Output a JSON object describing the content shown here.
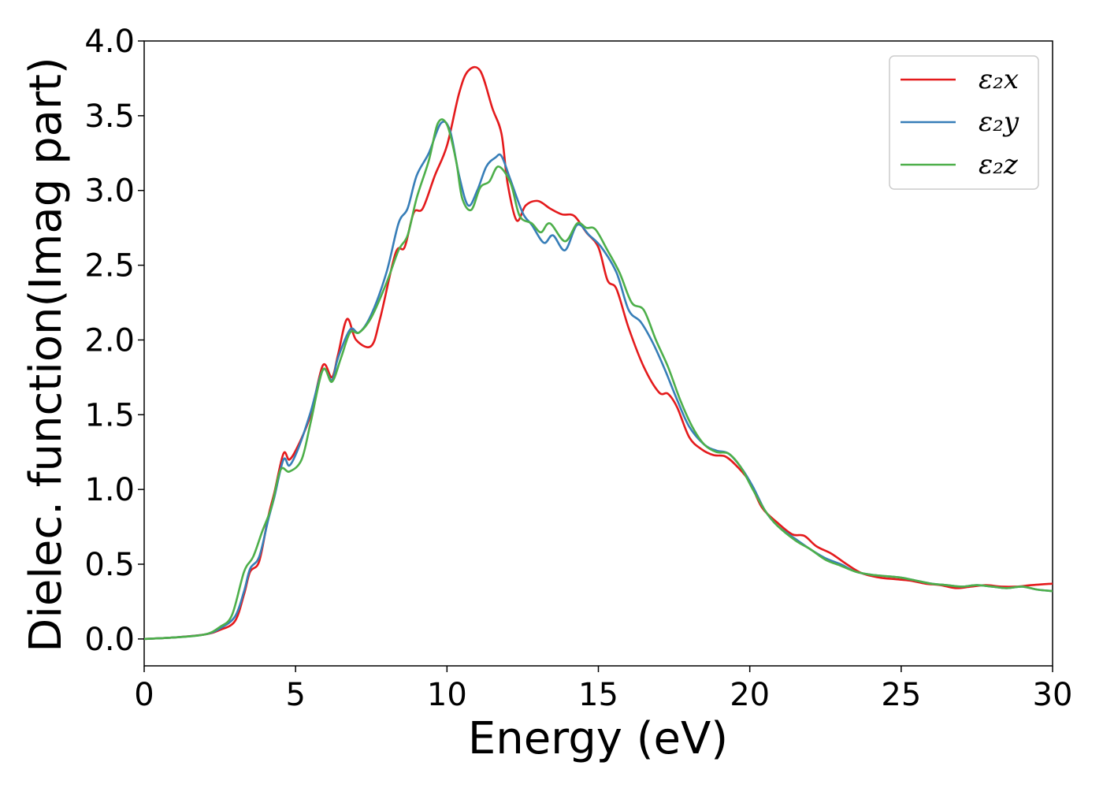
{
  "chart_data": {
    "type": "line",
    "title": "",
    "xlabel": "Energy (eV)",
    "ylabel": "Dielec. function(Imag part)",
    "xlim": [
      0,
      30
    ],
    "ylim": [
      -0.18,
      4.0
    ],
    "xticks": [
      0,
      5,
      10,
      15,
      20,
      25,
      30
    ],
    "yticks": [
      0.0,
      0.5,
      1.0,
      1.5,
      2.0,
      2.5,
      3.0,
      3.5,
      4.0
    ],
    "xtick_labels": [
      "0",
      "5",
      "10",
      "15",
      "20",
      "25",
      "30"
    ],
    "ytick_labels": [
      "0.0",
      "0.5",
      "1.0",
      "1.5",
      "2.0",
      "2.5",
      "3.0",
      "3.5",
      "4.0"
    ],
    "grid": false,
    "legend_position": "top-right",
    "series": [
      {
        "name": "ε₂x",
        "color": "#e41a1c",
        "points": [
          [
            0,
            0
          ],
          [
            1,
            0.01
          ],
          [
            2,
            0.03
          ],
          [
            2.5,
            0.06
          ],
          [
            3.0,
            0.12
          ],
          [
            3.3,
            0.3
          ],
          [
            3.5,
            0.45
          ],
          [
            3.8,
            0.52
          ],
          [
            4.1,
            0.82
          ],
          [
            4.3,
            0.98
          ],
          [
            4.6,
            1.24
          ],
          [
            4.8,
            1.2
          ],
          [
            5.1,
            1.3
          ],
          [
            5.5,
            1.5
          ],
          [
            5.9,
            1.83
          ],
          [
            6.2,
            1.75
          ],
          [
            6.4,
            1.9
          ],
          [
            6.7,
            2.14
          ],
          [
            7.0,
            2.0
          ],
          [
            7.5,
            1.96
          ],
          [
            7.8,
            2.15
          ],
          [
            8.3,
            2.58
          ],
          [
            8.6,
            2.62
          ],
          [
            8.9,
            2.85
          ],
          [
            9.2,
            2.88
          ],
          [
            9.6,
            3.1
          ],
          [
            10.0,
            3.3
          ],
          [
            10.4,
            3.65
          ],
          [
            10.7,
            3.8
          ],
          [
            11.1,
            3.8
          ],
          [
            11.5,
            3.55
          ],
          [
            11.8,
            3.38
          ],
          [
            12.0,
            3.05
          ],
          [
            12.3,
            2.8
          ],
          [
            12.6,
            2.9
          ],
          [
            13.0,
            2.93
          ],
          [
            13.4,
            2.88
          ],
          [
            13.8,
            2.84
          ],
          [
            14.2,
            2.83
          ],
          [
            14.6,
            2.72
          ],
          [
            15.0,
            2.62
          ],
          [
            15.3,
            2.4
          ],
          [
            15.6,
            2.34
          ],
          [
            16.0,
            2.08
          ],
          [
            16.5,
            1.82
          ],
          [
            17.0,
            1.65
          ],
          [
            17.3,
            1.64
          ],
          [
            17.6,
            1.55
          ],
          [
            18.0,
            1.35
          ],
          [
            18.4,
            1.27
          ],
          [
            18.8,
            1.23
          ],
          [
            19.2,
            1.22
          ],
          [
            19.6,
            1.15
          ],
          [
            20.0,
            1.05
          ],
          [
            20.4,
            0.88
          ],
          [
            20.9,
            0.78
          ],
          [
            21.4,
            0.7
          ],
          [
            21.8,
            0.69
          ],
          [
            22.2,
            0.62
          ],
          [
            22.7,
            0.57
          ],
          [
            23.2,
            0.5
          ],
          [
            23.7,
            0.44
          ],
          [
            24.3,
            0.41
          ],
          [
            24.8,
            0.4
          ],
          [
            25.3,
            0.39
          ],
          [
            25.8,
            0.37
          ],
          [
            26.3,
            0.36
          ],
          [
            26.8,
            0.34
          ],
          [
            27.3,
            0.35
          ],
          [
            27.8,
            0.36
          ],
          [
            28.3,
            0.35
          ],
          [
            28.8,
            0.35
          ],
          [
            29.3,
            0.36
          ],
          [
            30.0,
            0.37
          ]
        ]
      },
      {
        "name": "ε₂y",
        "color": "#377eb8",
        "points": [
          [
            0,
            0
          ],
          [
            1,
            0.01
          ],
          [
            2,
            0.03
          ],
          [
            2.5,
            0.07
          ],
          [
            3.0,
            0.15
          ],
          [
            3.3,
            0.32
          ],
          [
            3.5,
            0.47
          ],
          [
            3.8,
            0.55
          ],
          [
            4.1,
            0.8
          ],
          [
            4.3,
            0.95
          ],
          [
            4.6,
            1.2
          ],
          [
            4.8,
            1.16
          ],
          [
            5.1,
            1.28
          ],
          [
            5.5,
            1.52
          ],
          [
            5.9,
            1.8
          ],
          [
            6.2,
            1.73
          ],
          [
            6.4,
            1.88
          ],
          [
            6.8,
            2.07
          ],
          [
            7.1,
            2.05
          ],
          [
            7.5,
            2.17
          ],
          [
            8.0,
            2.45
          ],
          [
            8.4,
            2.78
          ],
          [
            8.7,
            2.88
          ],
          [
            9.0,
            3.1
          ],
          [
            9.4,
            3.25
          ],
          [
            9.8,
            3.45
          ],
          [
            10.1,
            3.4
          ],
          [
            10.4,
            3.1
          ],
          [
            10.7,
            2.9
          ],
          [
            11.0,
            3.0
          ],
          [
            11.3,
            3.16
          ],
          [
            11.6,
            3.22
          ],
          [
            11.8,
            3.23
          ],
          [
            12.1,
            3.07
          ],
          [
            12.5,
            2.85
          ],
          [
            12.8,
            2.77
          ],
          [
            13.2,
            2.65
          ],
          [
            13.5,
            2.7
          ],
          [
            13.9,
            2.6
          ],
          [
            14.3,
            2.77
          ],
          [
            14.7,
            2.7
          ],
          [
            15.1,
            2.62
          ],
          [
            15.6,
            2.45
          ],
          [
            16.0,
            2.2
          ],
          [
            16.4,
            2.12
          ],
          [
            16.8,
            1.98
          ],
          [
            17.2,
            1.8
          ],
          [
            17.6,
            1.6
          ],
          [
            18.0,
            1.42
          ],
          [
            18.5,
            1.3
          ],
          [
            18.9,
            1.26
          ],
          [
            19.3,
            1.24
          ],
          [
            19.7,
            1.15
          ],
          [
            20.1,
            1.02
          ],
          [
            20.5,
            0.86
          ],
          [
            20.9,
            0.76
          ],
          [
            21.5,
            0.67
          ],
          [
            22.0,
            0.6
          ],
          [
            22.5,
            0.54
          ],
          [
            23.0,
            0.5
          ],
          [
            23.5,
            0.45
          ],
          [
            24.0,
            0.43
          ],
          [
            24.5,
            0.42
          ],
          [
            25.0,
            0.41
          ],
          [
            25.5,
            0.39
          ],
          [
            26.0,
            0.37
          ],
          [
            26.5,
            0.36
          ],
          [
            27.0,
            0.35
          ],
          [
            27.5,
            0.36
          ],
          [
            28.0,
            0.35
          ],
          [
            28.5,
            0.34
          ],
          [
            29.0,
            0.35
          ],
          [
            29.5,
            0.33
          ],
          [
            30.0,
            0.32
          ]
        ]
      },
      {
        "name": "ε₂z",
        "color": "#4daf4a",
        "points": [
          [
            0,
            0
          ],
          [
            1,
            0.01
          ],
          [
            2,
            0.03
          ],
          [
            2.5,
            0.08
          ],
          [
            2.9,
            0.16
          ],
          [
            3.3,
            0.45
          ],
          [
            3.6,
            0.55
          ],
          [
            3.9,
            0.72
          ],
          [
            4.2,
            0.88
          ],
          [
            4.5,
            1.13
          ],
          [
            4.8,
            1.12
          ],
          [
            5.2,
            1.2
          ],
          [
            5.5,
            1.45
          ],
          [
            5.9,
            1.8
          ],
          [
            6.2,
            1.72
          ],
          [
            6.5,
            1.88
          ],
          [
            6.8,
            2.05
          ],
          [
            7.1,
            2.05
          ],
          [
            7.5,
            2.15
          ],
          [
            8.0,
            2.38
          ],
          [
            8.4,
            2.6
          ],
          [
            8.7,
            2.7
          ],
          [
            9.0,
            2.95
          ],
          [
            9.4,
            3.2
          ],
          [
            9.7,
            3.45
          ],
          [
            10.0,
            3.44
          ],
          [
            10.3,
            3.2
          ],
          [
            10.5,
            2.95
          ],
          [
            10.8,
            2.87
          ],
          [
            11.1,
            3.02
          ],
          [
            11.4,
            3.06
          ],
          [
            11.7,
            3.16
          ],
          [
            12.1,
            3.05
          ],
          [
            12.4,
            2.83
          ],
          [
            12.8,
            2.78
          ],
          [
            13.1,
            2.72
          ],
          [
            13.4,
            2.78
          ],
          [
            13.9,
            2.66
          ],
          [
            14.3,
            2.78
          ],
          [
            14.6,
            2.75
          ],
          [
            14.9,
            2.74
          ],
          [
            15.3,
            2.6
          ],
          [
            15.7,
            2.45
          ],
          [
            16.1,
            2.25
          ],
          [
            16.5,
            2.2
          ],
          [
            16.9,
            2.0
          ],
          [
            17.3,
            1.82
          ],
          [
            17.7,
            1.6
          ],
          [
            18.1,
            1.42
          ],
          [
            18.5,
            1.3
          ],
          [
            18.9,
            1.25
          ],
          [
            19.3,
            1.24
          ],
          [
            19.7,
            1.15
          ],
          [
            20.1,
            1.0
          ],
          [
            20.5,
            0.86
          ],
          [
            20.9,
            0.76
          ],
          [
            21.5,
            0.66
          ],
          [
            22.0,
            0.6
          ],
          [
            22.5,
            0.53
          ],
          [
            23.0,
            0.49
          ],
          [
            23.5,
            0.45
          ],
          [
            24.0,
            0.43
          ],
          [
            24.5,
            0.42
          ],
          [
            25.0,
            0.41
          ],
          [
            25.5,
            0.39
          ],
          [
            26.0,
            0.37
          ],
          [
            26.5,
            0.36
          ],
          [
            27.0,
            0.35
          ],
          [
            27.5,
            0.36
          ],
          [
            28.0,
            0.35
          ],
          [
            28.5,
            0.34
          ],
          [
            29.0,
            0.35
          ],
          [
            29.5,
            0.33
          ],
          [
            30.0,
            0.32
          ]
        ]
      }
    ]
  }
}
